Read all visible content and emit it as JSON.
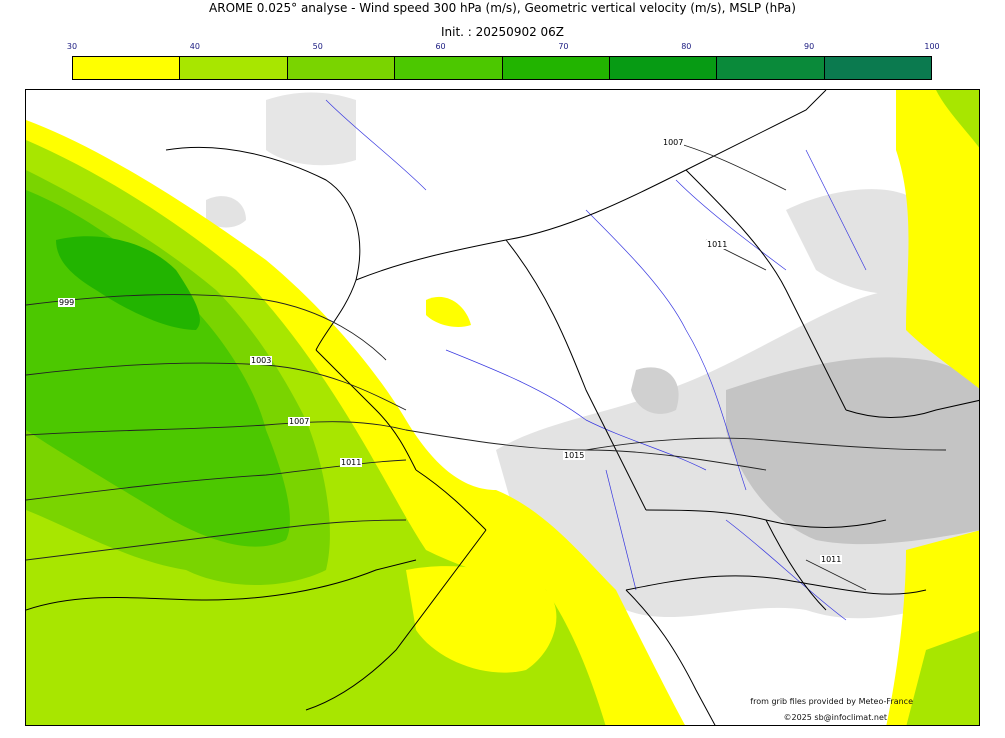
{
  "title": "AROME 0.025° analyse - Wind speed 300 hPa (m/s), Geometric vertical velocity (m/s), MSLP (hPa)",
  "init": "Init. : 20250902 06Z",
  "colorbar": {
    "ticks": [
      "30",
      "40",
      "50",
      "60",
      "70",
      "80",
      "90",
      "100"
    ],
    "colors": [
      "#ffff00",
      "#a8e600",
      "#7ad400",
      "#4cc800",
      "#22b400",
      "#079b14",
      "#0a8a3a",
      "#0b7a4f"
    ]
  },
  "map": {
    "colors": {
      "level_30_40": "#ffff00",
      "level_40_50": "#a8e600",
      "level_50_60": "#7ad400",
      "level_60_70": "#4cc800",
      "level_70_80": "#22b400",
      "relief_light": "#e3e3e3",
      "relief_dark": "#c4c4c4",
      "rivers": "#3a3ae0",
      "borders": "#000000"
    },
    "isobar_labels": [
      "999",
      "1003",
      "1007",
      "1011",
      "1015",
      "1007",
      "1011",
      "1011"
    ]
  },
  "credits": {
    "source": "from grib files provided by Meteo-France",
    "copyright": "©2025 sb@infoclimat.net"
  }
}
